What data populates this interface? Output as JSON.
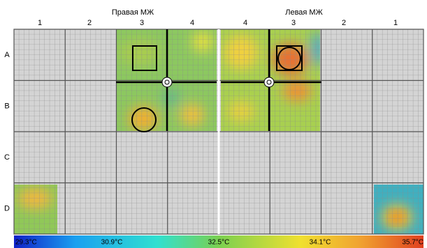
{
  "header": {
    "right_title": "Правая МЖ",
    "left_title": "Левая МЖ"
  },
  "columns": [
    "1",
    "2",
    "3",
    "4",
    "4",
    "3",
    "2",
    "1"
  ],
  "rows": [
    "A",
    "B",
    "C",
    "D"
  ],
  "scale": [
    "29.3°C",
    "30.9°C",
    "32.5°C",
    "34.1°C",
    "35.7°C"
  ]
}
